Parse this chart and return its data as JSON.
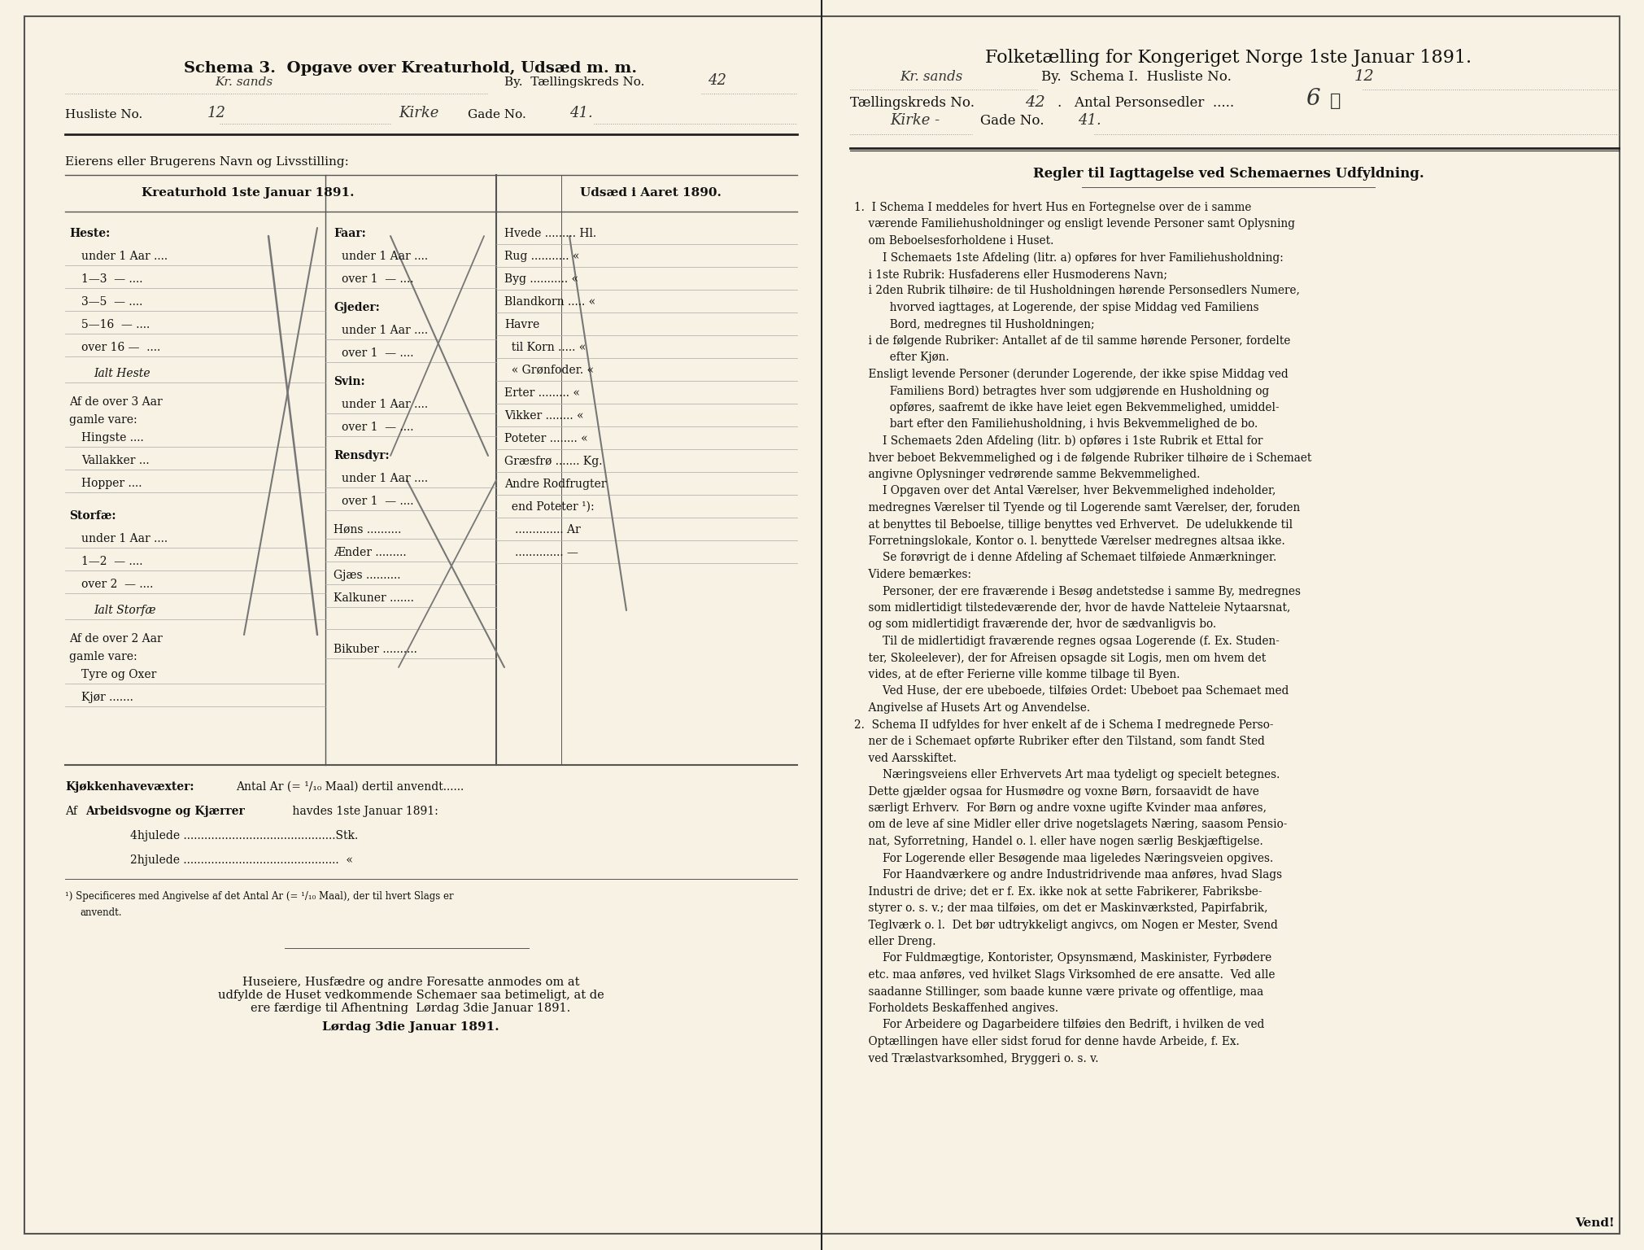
{
  "bg_color": "#f5f0e0",
  "page_bg": "#faf6e8",
  "left_title": "Schema 3.  Opgave over Kreaturhold, Udsæd m. m.",
  "left_line1_label": "",
  "left_line1_value": "Kr. sands",
  "left_line1_suffix": "By.  Tællingskreds No. 42",
  "left_line2_label": "Husliste No. 12",
  "left_line2_value": "Kirke Gade No. 41.",
  "left_section_label": "Eierens eller Brugerens Navn og Livsstilling:",
  "kreaturhold_header": "Kreaturhold 1ste Januar 1891.",
  "udsaed_header": "Udsæd i Aaret 1890.",
  "right_title": "Folketælling for Kongeriget Norge 1ste Januar 1891.",
  "right_line1": "Kr. sands  By.  Schema I.  Husliste No. 12.",
  "right_line2": "Tællingskreds No. 42.   Antal Personsedler .... 6",
  "right_line3": "Kirke - Gade No. 41.",
  "right_section_header": "Regler til Iagttagelse ved Schemaernes Udfyldning.",
  "divider_color": "#222222",
  "text_color": "#111111",
  "ruled_line_color": "#888888",
  "paper_color": "#f7f2e3"
}
